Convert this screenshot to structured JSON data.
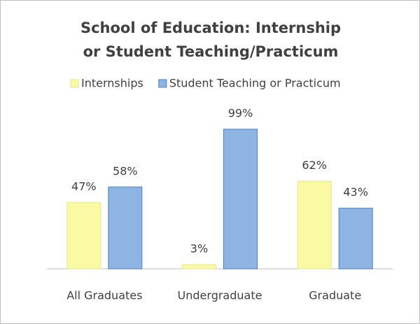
{
  "chart_data": {
    "type": "bar",
    "title": "School of Education: Internship or Student Teaching/Practicum",
    "categories": [
      "All Graduates",
      "Undergraduate",
      "Graduate"
    ],
    "series": [
      {
        "name": "Internships",
        "color": "#fafaa5",
        "values": [
          47,
          3,
          62
        ],
        "value_labels": [
          "47%",
          "3%",
          "62%"
        ]
      },
      {
        "name": "Student Teaching or Practicum",
        "color": "#8db4e2",
        "values": [
          58,
          99,
          43
        ],
        "value_labels": [
          "58%",
          "99%",
          "43%"
        ]
      }
    ],
    "legend": "top"
  }
}
